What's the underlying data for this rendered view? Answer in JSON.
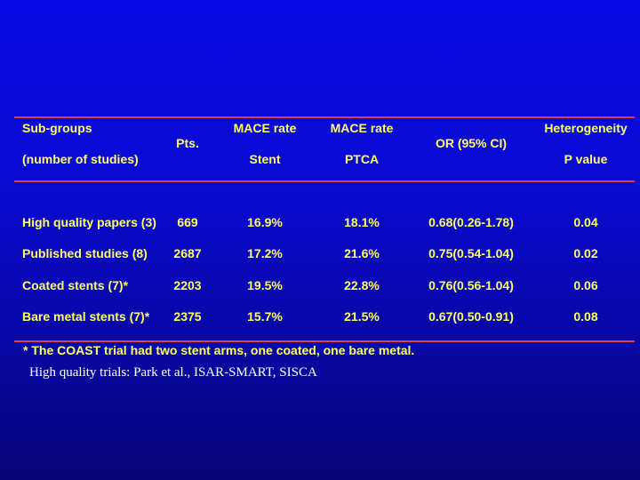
{
  "table": {
    "headers": {
      "subgroups_line1": "Sub-groups",
      "subgroups_line2": "(number of studies)",
      "pts": "Pts.",
      "mace_stent_line1": "MACE rate",
      "mace_stent_line2": "Stent",
      "mace_ptca_line1": "MACE rate",
      "mace_ptca_line2": "PTCA",
      "or": "OR (95% CI)",
      "het_line1": "Heterogeneity",
      "het_line2": "P value"
    },
    "rows": [
      {
        "subgroup": "High quality papers (3)",
        "pts": "669",
        "mace_stent": "16.9%",
        "mace_ptca": "18.1%",
        "or": "0.68(0.26-1.78)",
        "p": "0.04"
      },
      {
        "subgroup": "Published studies (8)",
        "pts": "2687",
        "mace_stent": "17.2%",
        "mace_ptca": "21.6%",
        "or": "0.75(0.54-1.04)",
        "p": "0.02"
      },
      {
        "subgroup": "Coated stents (7)*",
        "pts": "2203",
        "mace_stent": "19.5%",
        "mace_ptca": "22.8%",
        "or": "0.76(0.56-1.04)",
        "p": "0.06"
      },
      {
        "subgroup": "Bare metal stents (7)*",
        "pts": "2375",
        "mace_stent": "15.7%",
        "mace_ptca": "21.5%",
        "or": "0.67(0.50-0.91)",
        "p": "0.08"
      }
    ]
  },
  "footnote": "* The COAST trial had two stent arms, one coated, one bare metal.",
  "note": "High quality trials: Park et al., ISAR-SMART, SISCA",
  "colors": {
    "background": "#0a0ae6",
    "text": "#ffff66",
    "rule": "#d8404a",
    "note": "#ffffff"
  }
}
